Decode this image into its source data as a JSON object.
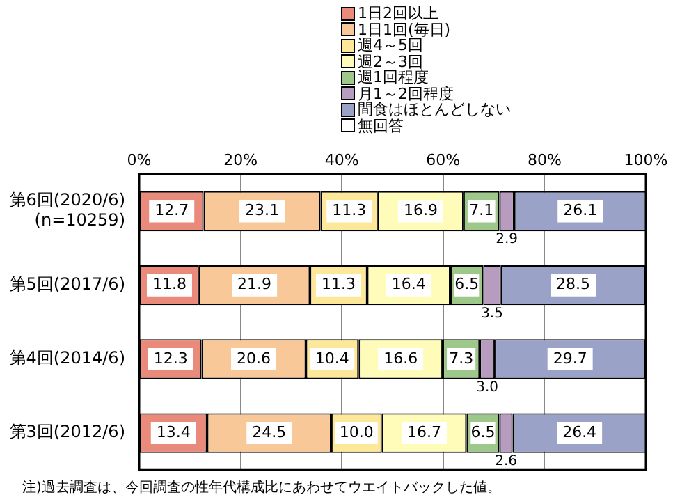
{
  "chart_data": {
    "type": "bar",
    "orientation": "horizontal",
    "stacked": true,
    "categories": [
      "第6回(2020/6)\n(n=10259)",
      "第5回(2017/6)",
      "第4回(2014/6)",
      "第3回(2012/6)"
    ],
    "series": [
      {
        "name": "1日2回以上",
        "color": "#ea8a7a",
        "values": [
          12.7,
          11.8,
          12.3,
          13.4
        ],
        "value_labels": [
          "12.7",
          "11.8",
          "12.3",
          "13.4"
        ]
      },
      {
        "name": "1日1回(毎日)",
        "color": "#f9c898",
        "values": [
          23.1,
          21.9,
          20.6,
          24.5
        ],
        "value_labels": [
          "23.1",
          "21.9",
          "20.6",
          "24.5"
        ]
      },
      {
        "name": "週4～5回",
        "color": "#fde89a",
        "values": [
          11.3,
          11.3,
          10.4,
          10.0
        ],
        "value_labels": [
          "11.3",
          "11.3",
          "10.4",
          "10.0"
        ]
      },
      {
        "name": "週2～3回",
        "color": "#fefcb8",
        "values": [
          16.9,
          16.4,
          16.6,
          16.7
        ],
        "value_labels": [
          "16.9",
          "16.4",
          "16.6",
          "16.7"
        ]
      },
      {
        "name": "週1回程度",
        "color": "#9dc88a",
        "values": [
          7.1,
          6.5,
          7.3,
          6.5
        ],
        "value_labels": [
          "7.1",
          "6.5",
          "7.3",
          "6.5"
        ]
      },
      {
        "name": "月1～2回程度",
        "color": "#b89cc0",
        "values": [
          2.9,
          3.5,
          3.0,
          2.6
        ],
        "value_labels": [
          "2.9",
          "3.5",
          "3.0",
          "2.6"
        ]
      },
      {
        "name": "間食はほとんどしない",
        "color": "#9aa2c8",
        "values": [
          26.1,
          28.5,
          29.7,
          26.4
        ],
        "value_labels": [
          "26.1",
          "28.5",
          "29.7",
          "26.4"
        ]
      },
      {
        "name": "無回答",
        "color": "#ffffff",
        "values": [
          0,
          0,
          0,
          0
        ],
        "value_labels": [
          null,
          null,
          null,
          null
        ]
      }
    ],
    "xlim": [
      0,
      100
    ],
    "xticks": [
      {
        "value": 0,
        "label": "0%"
      },
      {
        "value": 20,
        "label": "20%"
      },
      {
        "value": 40,
        "label": "40%"
      },
      {
        "value": 60,
        "label": "60%"
      },
      {
        "value": 80,
        "label": "80%"
      },
      {
        "value": 100,
        "label": "100%"
      }
    ],
    "grid": "x",
    "legend": "top right",
    "annotations": [
      "注)過去調査は、今回調査の性年代構成比にあわせてウエイトバックした値。"
    ]
  }
}
